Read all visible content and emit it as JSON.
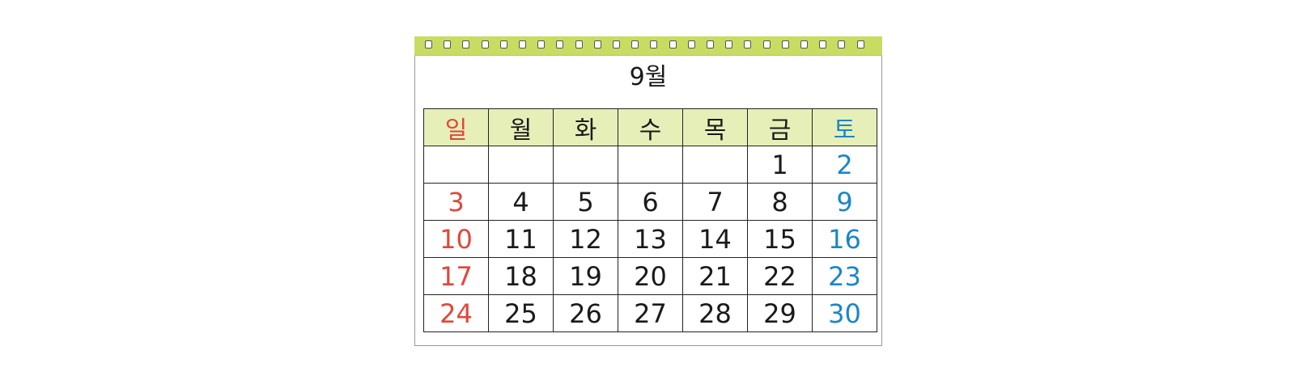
{
  "calendar": {
    "month_title": "9월",
    "weekdays": [
      "일",
      "월",
      "화",
      "수",
      "목",
      "금",
      "토"
    ],
    "weeks": [
      [
        "",
        "",
        "",
        "",
        "",
        "1",
        "2"
      ],
      [
        "3",
        "4",
        "5",
        "6",
        "7",
        "8",
        "9"
      ],
      [
        "10",
        "11",
        "12",
        "13",
        "14",
        "15",
        "16"
      ],
      [
        "17",
        "18",
        "19",
        "20",
        "21",
        "22",
        "23"
      ],
      [
        "24",
        "25",
        "26",
        "27",
        "28",
        "29",
        "30"
      ]
    ],
    "ring_count": 24,
    "colors": {
      "spiral_bar": "#c8dc62",
      "header_bg": "#e7efb8",
      "sunday": "#e2463a",
      "saturday": "#1b86c8",
      "weekday": "#1a1a1a"
    },
    "icon": "spiral-binding-ring-icon"
  }
}
